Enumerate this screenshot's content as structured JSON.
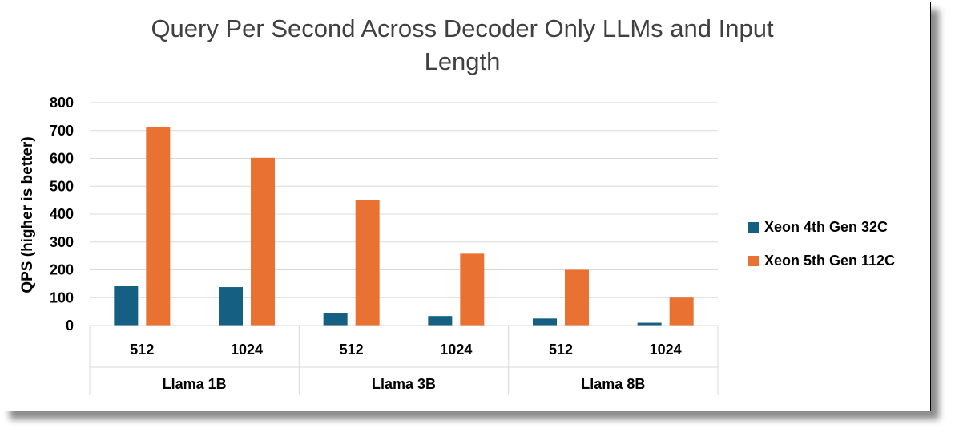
{
  "chart_data": {
    "type": "bar",
    "title_lines": [
      "Query Per Second Across Decoder Only LLMs and Input",
      "Length"
    ],
    "ylabel": "QPS (higher is better)",
    "ylim": [
      0,
      800
    ],
    "yticks": [
      "0",
      "100",
      "200",
      "300",
      "400",
      "500",
      "600",
      "700",
      "800"
    ],
    "grid": true,
    "legend_position": "right",
    "groups": [
      {
        "label": "Llama 1B",
        "categories": [
          "512",
          "1024"
        ]
      },
      {
        "label": "Llama 3B",
        "categories": [
          "512",
          "1024"
        ]
      },
      {
        "label": "Llama 8B",
        "categories": [
          "512",
          "1024"
        ]
      }
    ],
    "series": [
      {
        "name": "Xeon 4th Gen 32C",
        "color": "#156082",
        "values": [
          141,
          138,
          46,
          34,
          25,
          10
        ]
      },
      {
        "name": "Xeon 5th Gen 112C",
        "color": "#E97132",
        "values": [
          712,
          602,
          450,
          258,
          200,
          100
        ]
      }
    ]
  }
}
